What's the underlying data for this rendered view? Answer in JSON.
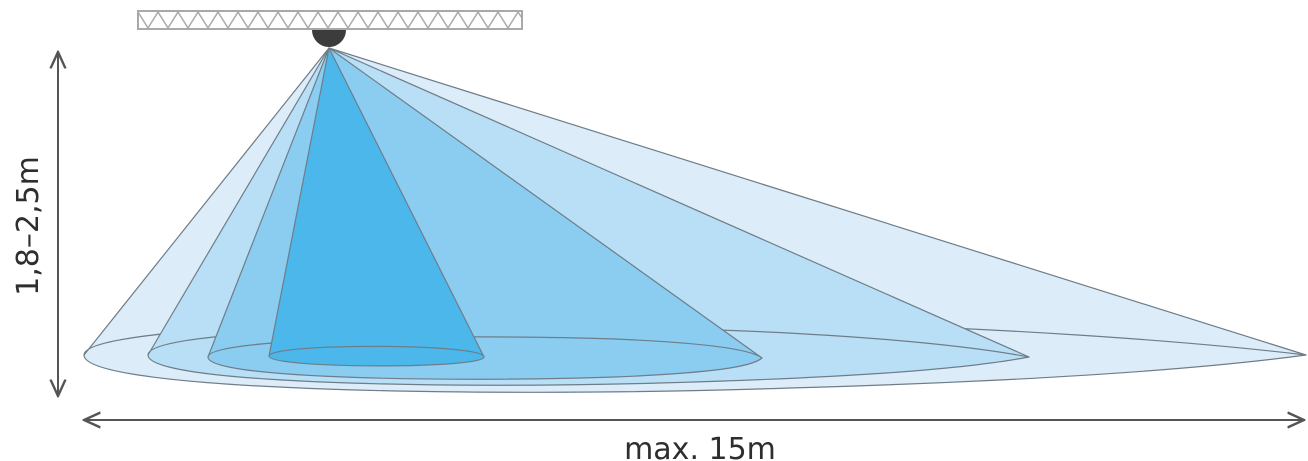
{
  "labels": {
    "height_range": "1,8–2,5m",
    "max_distance": "max. 15m"
  },
  "colors": {
    "zone_darkest": "#4bb7ea",
    "zone_dark": "#8acdf1",
    "zone_mid": "#b9dff6",
    "zone_light": "#dcedf9",
    "outline": "#6e7d88",
    "sensor": "#3c3c3c",
    "truss": "#a9a9a9",
    "arrow": "#555555",
    "text": "#2e2e2e"
  },
  "icons": {
    "sensor": "dome-sensor-icon",
    "ceiling": "ceiling-truss-icon"
  }
}
